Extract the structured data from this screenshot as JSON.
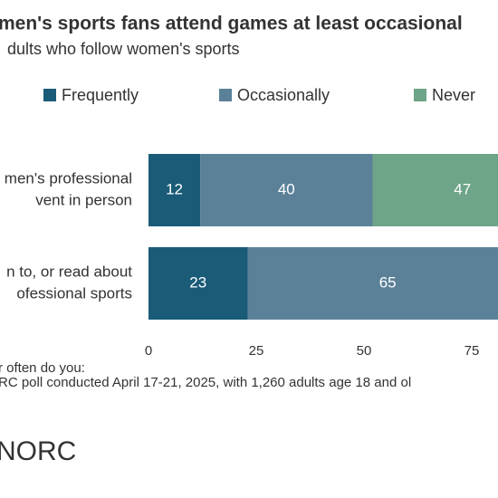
{
  "chart_data": {
    "type": "stacked-bar-horizontal",
    "title": "men's sports fans attend games at least occasional",
    "subtitle": "dults who follow women's sports",
    "categories": [
      [
        "men's professional",
        "vent in person"
      ],
      [
        "n to, or read about",
        "ofessional sports"
      ]
    ],
    "series": [
      {
        "name": "Frequently",
        "color": "#1a5b78",
        "values": [
          12,
          23
        ]
      },
      {
        "name": "Occasionally",
        "color": "#5b8199",
        "values": [
          40,
          65
        ]
      },
      {
        "name": "Never",
        "color": "#6ea487",
        "values": [
          47,
          null
        ]
      }
    ],
    "xlim": [
      0,
      100
    ],
    "xticks": [
      0,
      25,
      50,
      75
    ],
    "notes": [
      "r often do you:",
      "RC poll conducted April 17-21, 2025, with 1,260 adults age 18 and ol"
    ],
    "source": "NORC"
  }
}
